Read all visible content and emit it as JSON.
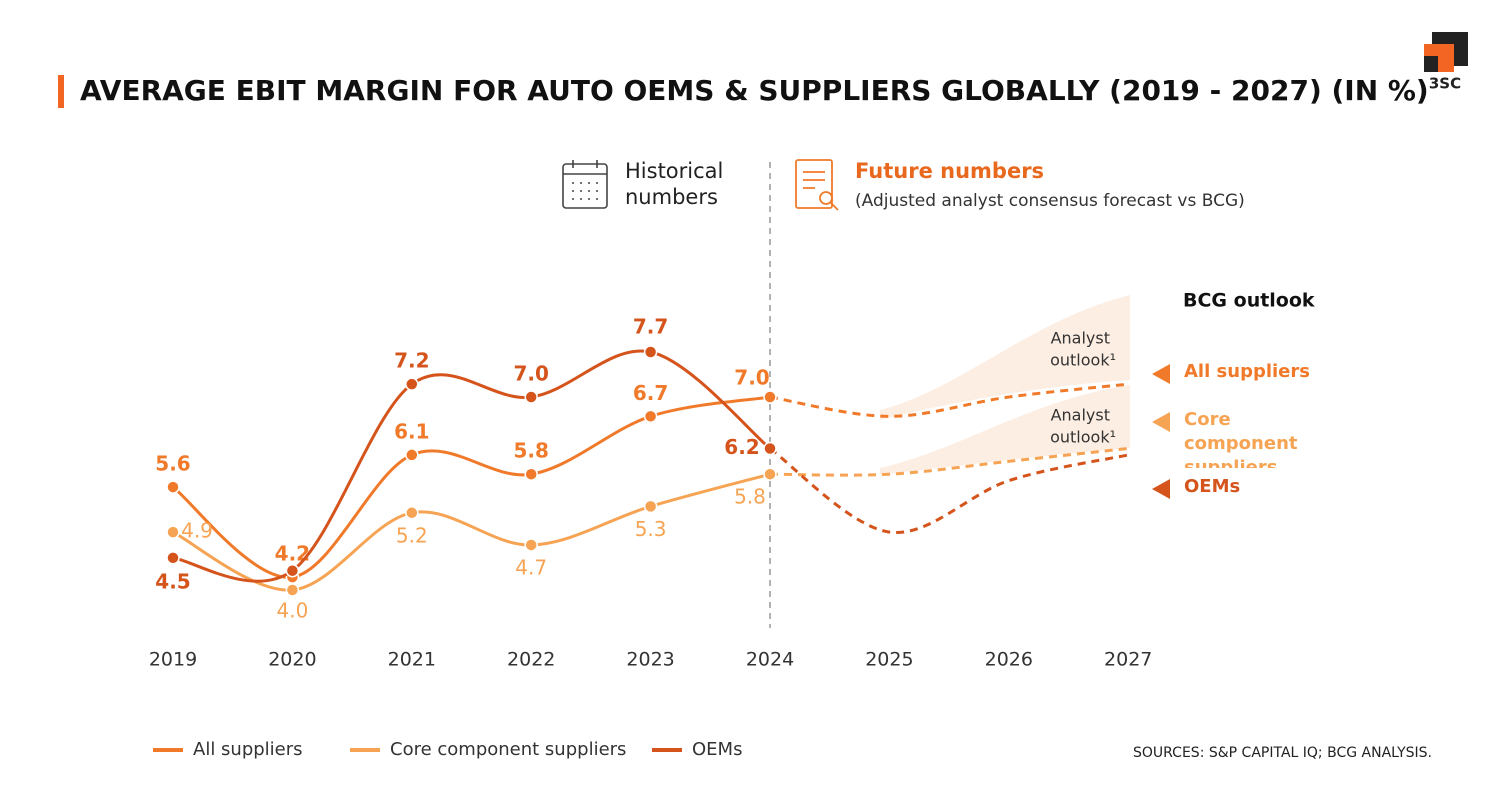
{
  "chart_data": {
    "type": "line",
    "title": "AVERAGE EBIT MARGIN FOR AUTO OEMS & SUPPLIERS GLOBALLY (2019 - 2027) (IN %)",
    "logo": "3SC",
    "historical_label": [
      "Historical",
      "numbers"
    ],
    "future_title": "Future numbers",
    "future_subtitle": "(Adjusted analyst consensus forecast vs BCG)",
    "outlook_title": "BCG outlook",
    "analyst_outlook": [
      "Analyst",
      "outlook¹"
    ],
    "source": "SOURCES: S&P CAPITAL IQ; BCG ANALYSIS.",
    "forecast_start": "2024",
    "categories": [
      "2019",
      "2020",
      "2021",
      "2022",
      "2023",
      "2024",
      "2025",
      "2026",
      "2027"
    ],
    "series": [
      {
        "name": "All suppliers",
        "color": "#f07a2a",
        "values": [
          5.6,
          4.2,
          6.1,
          5.8,
          6.7,
          7.0,
          6.7,
          7.0,
          7.2
        ],
        "value_labels": [
          "5.6",
          "4.2",
          "6.1",
          "5.8",
          "6.7",
          "7.0",
          null,
          null,
          null
        ]
      },
      {
        "name": "Core component suppliers",
        "color": "#f6a454",
        "values": [
          4.9,
          4.0,
          5.2,
          4.7,
          5.3,
          5.8,
          5.8,
          6.0,
          6.2
        ],
        "value_labels": [
          "4.9",
          "4.0",
          "5.2",
          "4.7",
          "5.3",
          "5.8",
          null,
          null,
          null
        ]
      },
      {
        "name": "OEMs",
        "color": "#d4541c",
        "values": [
          4.5,
          4.3,
          7.2,
          7.0,
          7.7,
          6.2,
          4.9,
          5.7,
          6.1
        ],
        "value_labels": [
          "4.5",
          null,
          "7.2",
          "7.0",
          "7.7",
          "6.2",
          null,
          null,
          null
        ]
      }
    ]
  }
}
